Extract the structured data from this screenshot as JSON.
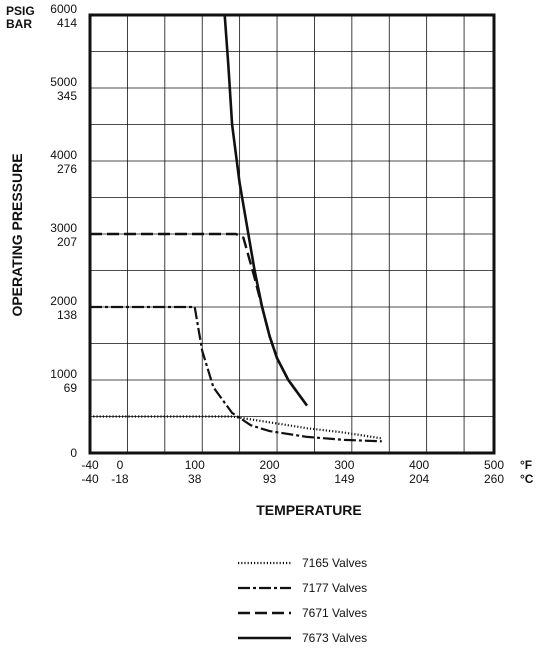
{
  "chart_data": {
    "type": "line",
    "xlabel": "TEMPERATURE",
    "ylabel": "OPERATING PRESSURE",
    "x_unit_primary": "°F",
    "x_unit_secondary": "°C",
    "y_unit_primary": "PSIG",
    "y_unit_secondary": "BAR",
    "xlim": [
      -40,
      500
    ],
    "ylim": [
      0,
      6000
    ],
    "grid": true,
    "legend_position": "bottom",
    "x_ticks": [
      {
        "value": -40,
        "f": "-40",
        "c": "-40"
      },
      {
        "value": 0,
        "f": "0",
        "c": "-18"
      },
      {
        "value": 100,
        "f": "100",
        "c": "38"
      },
      {
        "value": 200,
        "f": "200",
        "c": "93"
      },
      {
        "value": 300,
        "f": "300",
        "c": "149"
      },
      {
        "value": 400,
        "f": "400",
        "c": "204"
      },
      {
        "value": 500,
        "f": "500",
        "c": "260"
      }
    ],
    "y_ticks": [
      {
        "value": 0,
        "psig": "0",
        "bar": ""
      },
      {
        "value": 1000,
        "psig": "1000",
        "bar": "69"
      },
      {
        "value": 2000,
        "psig": "2000",
        "bar": "138"
      },
      {
        "value": 3000,
        "psig": "3000",
        "bar": "207"
      },
      {
        "value": 4000,
        "psig": "4000",
        "bar": "276"
      },
      {
        "value": 5000,
        "psig": "5000",
        "bar": "345"
      },
      {
        "value": 6000,
        "psig": "6000",
        "bar": "414"
      }
    ],
    "series": [
      {
        "name": "7165 Valves",
        "style": "dotted",
        "x": [
          -40,
          150,
          200,
          250,
          300,
          350
        ],
        "y": [
          500,
          500,
          420,
          340,
          280,
          200
        ]
      },
      {
        "name": "7177 Valves",
        "style": "dashdot",
        "x": [
          -40,
          100,
          110,
          125,
          150,
          175,
          200,
          250,
          300,
          350
        ],
        "y": [
          2000,
          2000,
          1400,
          900,
          550,
          380,
          300,
          220,
          180,
          160
        ]
      },
      {
        "name": "7671 Valves",
        "style": "dashed",
        "x": [
          -40,
          155,
          165,
          180,
          190,
          200,
          210,
          225,
          250
        ],
        "y": [
          3000,
          3000,
          2950,
          2400,
          2000,
          1600,
          1300,
          1000,
          650
        ]
      },
      {
        "name": "7673 Valves",
        "style": "solid",
        "x": [
          0,
          140,
          145,
          150,
          160,
          170,
          180,
          190,
          200,
          210,
          225,
          250
        ],
        "y": [
          6000,
          6000,
          5300,
          4500,
          3700,
          3100,
          2500,
          2000,
          1600,
          1300,
          1000,
          650
        ]
      }
    ]
  }
}
